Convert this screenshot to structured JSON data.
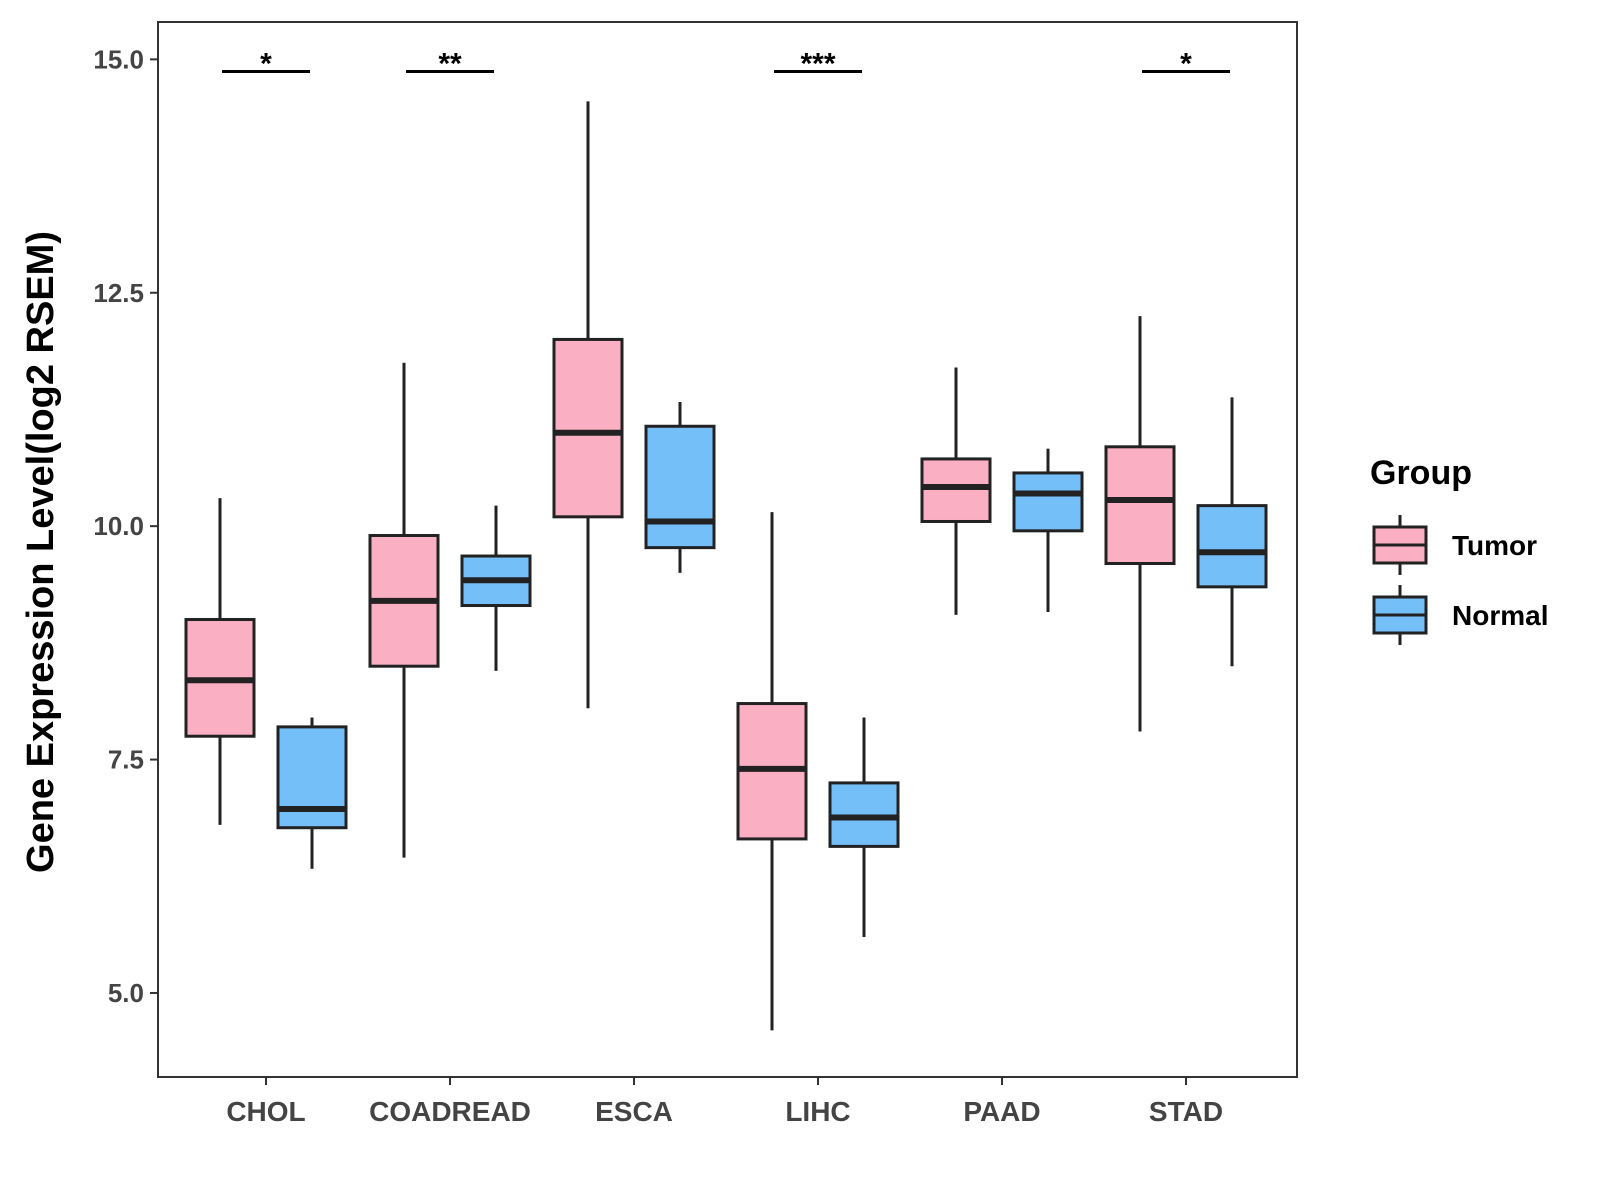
{
  "chart_data": {
    "type": "boxplot",
    "title": "",
    "xlabel": "",
    "ylabel": "Gene Expression Level(log2 RSEM)",
    "ylim": [
      4.1,
      15.4
    ],
    "yticks": [
      "5.0",
      "7.5",
      "10.0",
      "12.5",
      "15.0"
    ],
    "ytick_values": [
      5.0,
      7.5,
      10.0,
      12.5,
      15.0
    ],
    "grid": false,
    "legend": {
      "title": "Group",
      "position": "right",
      "entries": [
        {
          "name": "Tumor",
          "color": "#FBAFC2"
        },
        {
          "name": "Normal",
          "color": "#74BFF8"
        }
      ]
    },
    "categories": [
      "CHOL",
      "COADREAD",
      "ESCA",
      "LIHC",
      "PAAD",
      "STAD"
    ],
    "series": [
      {
        "name": "Tumor",
        "color": "#FBAFC2",
        "boxes": [
          {
            "low": 6.8,
            "q1": 7.75,
            "median": 8.35,
            "q3": 9.0,
            "high": 10.3
          },
          {
            "low": 6.45,
            "q1": 8.5,
            "median": 9.2,
            "q3": 9.9,
            "high": 11.75
          },
          {
            "low": 8.05,
            "q1": 10.1,
            "median": 11.0,
            "q3": 12.0,
            "high": 14.55
          },
          {
            "low": 4.6,
            "q1": 6.65,
            "median": 7.4,
            "q3": 8.1,
            "high": 10.15
          },
          {
            "low": 9.05,
            "q1": 10.05,
            "median": 10.42,
            "q3": 10.72,
            "high": 11.7
          },
          {
            "low": 7.8,
            "q1": 9.6,
            "median": 10.28,
            "q3": 10.85,
            "high": 12.25
          }
        ]
      },
      {
        "name": "Normal",
        "color": "#74BFF8",
        "boxes": [
          {
            "low": 6.33,
            "q1": 6.77,
            "median": 6.97,
            "q3": 7.85,
            "high": 7.95
          },
          {
            "low": 8.45,
            "q1": 9.15,
            "median": 9.42,
            "q3": 9.68,
            "high": 10.22
          },
          {
            "low": 9.5,
            "q1": 9.77,
            "median": 10.05,
            "q3": 11.07,
            "high": 11.33
          },
          {
            "low": 5.6,
            "q1": 6.57,
            "median": 6.88,
            "q3": 7.25,
            "high": 7.95
          },
          {
            "low": 9.08,
            "q1": 9.95,
            "median": 10.35,
            "q3": 10.57,
            "high": 10.83
          },
          {
            "low": 8.5,
            "q1": 9.35,
            "median": 9.72,
            "q3": 10.22,
            "high": 11.38
          }
        ]
      }
    ],
    "annotations": [
      {
        "category": "CHOL",
        "label": "*",
        "y": 14.87
      },
      {
        "category": "COADREAD",
        "label": "**",
        "y": 14.87
      },
      {
        "category": "LIHC",
        "label": "***",
        "y": 14.87
      },
      {
        "category": "STAD",
        "label": "*",
        "y": 14.87
      }
    ]
  },
  "colors": {
    "tumor": "#FBAFC2",
    "normal": "#74BFF8",
    "outline": "#222222",
    "panel_border": "#333333"
  }
}
